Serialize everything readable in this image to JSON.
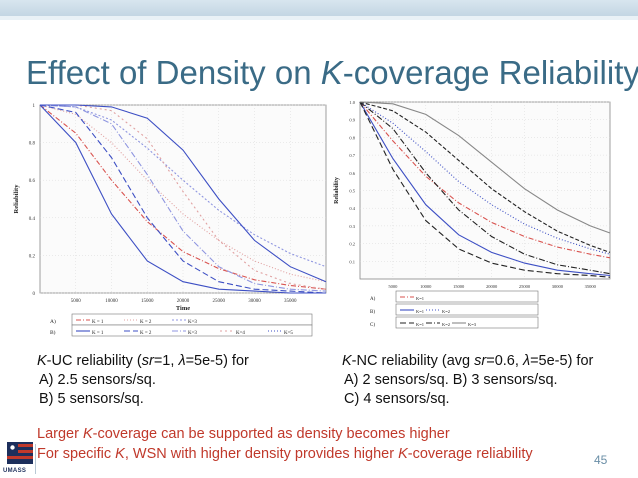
{
  "slide": {
    "title_pre": "Effect of Density on ",
    "title_em": "K",
    "title_post": "-coverage Reliability",
    "page_number": "45",
    "logo_text": "UMASS"
  },
  "left_caption": {
    "line1_em": "K",
    "line1_a": "-UC reliability (",
    "line1_sr": "sr",
    "line1_b": "=1, ",
    "line1_lambda": "λ",
    "line1_c": "=5e-5) for",
    "line2": "A) 2.5 sensors/sq.",
    "line3": "B) 5 sensors/sq."
  },
  "right_caption": {
    "line1_em": "K",
    "line1_a": "-NC reliability (avg ",
    "line1_sr": "sr",
    "line1_b": "=0.6, ",
    "line1_lambda": "λ",
    "line1_c": "=5e-5)  for",
    "line2": "A) 2 sensors/sq.   B) 3 sensors/sq.",
    "line3": "C) 4 sensors/sq."
  },
  "notes": {
    "line1_a": "Larger ",
    "line1_em": "K",
    "line1_b": "-coverage can be supported as density becomes higher",
    "line2_a": "For specific ",
    "line2_em": "K",
    "line2_b": ", WSN with higher density provides higher ",
    "line2_em2": "K",
    "line2_c": "-coverage reliability"
  },
  "colors": {
    "title": "#3a6b86",
    "note": "#c0392b",
    "series_red": "#d9534f",
    "series_pink": "#e0a0a0",
    "series_blue": "#3d4fc4",
    "series_lightblue": "#8f96e0",
    "series_black": "#222222",
    "series_gray": "#888888"
  },
  "chart_data": [
    {
      "type": "line",
      "xlabel": "Time",
      "ylabel": "Reliability",
      "xlim": [
        0,
        40000
      ],
      "ylim": [
        0,
        1
      ],
      "xticks": [
        "5000",
        "10000",
        "15000",
        "20000",
        "25000",
        "30000",
        "35000"
      ],
      "yticks": [
        "0",
        "0.2",
        "0.4",
        "0.6",
        "0.8",
        "1"
      ],
      "grid": true,
      "legend_placement": "bottom",
      "legend": [
        {
          "group": "A)",
          "entries": [
            "K = 1",
            "K = 2",
            "K=3"
          ]
        },
        {
          "group": "B)",
          "entries": [
            "K = 1",
            "K = 2",
            "K=3",
            "K=4",
            "K=5"
          ]
        }
      ],
      "series": [
        {
          "x": [
            0,
            5000,
            10000,
            15000,
            20000,
            25000,
            30000,
            35000,
            40000
          ],
          "values": [
            1.0,
            0.85,
            0.6,
            0.38,
            0.22,
            0.13,
            0.07,
            0.04,
            0.02
          ]
        },
        {
          "x": [
            0,
            5000,
            10000,
            15000,
            20000,
            25000,
            30000,
            35000,
            40000
          ],
          "values": [
            1.0,
            0.95,
            0.8,
            0.6,
            0.42,
            0.28,
            0.17,
            0.1,
            0.06
          ]
        },
        {
          "x": [
            0,
            5000,
            10000,
            15000,
            20000,
            25000,
            30000,
            35000,
            40000
          ],
          "values": [
            1.0,
            0.99,
            0.92,
            0.77,
            0.6,
            0.44,
            0.31,
            0.21,
            0.14
          ]
        },
        {
          "x": [
            0,
            5000,
            10000,
            15000,
            20000,
            25000,
            30000,
            35000,
            40000
          ],
          "values": [
            1.0,
            0.8,
            0.42,
            0.17,
            0.06,
            0.02,
            0.01,
            0.0,
            0.0
          ]
        },
        {
          "x": [
            0,
            5000,
            10000,
            15000,
            20000,
            25000,
            30000,
            35000,
            40000
          ],
          "values": [
            1.0,
            0.96,
            0.72,
            0.4,
            0.17,
            0.06,
            0.02,
            0.01,
            0.0
          ]
        },
        {
          "x": [
            0,
            5000,
            10000,
            15000,
            20000,
            25000,
            30000,
            35000,
            40000
          ],
          "values": [
            1.0,
            0.99,
            0.9,
            0.63,
            0.33,
            0.14,
            0.05,
            0.02,
            0.01
          ]
        },
        {
          "x": [
            0,
            5000,
            10000,
            15000,
            20000,
            25000,
            30000,
            35000,
            40000
          ],
          "values": [
            1.0,
            1.0,
            0.97,
            0.82,
            0.54,
            0.28,
            0.12,
            0.05,
            0.02
          ]
        },
        {
          "x": [
            0,
            5000,
            10000,
            15000,
            20000,
            25000,
            30000,
            35000,
            40000
          ],
          "values": [
            1.0,
            1.0,
            0.99,
            0.93,
            0.76,
            0.5,
            0.28,
            0.14,
            0.06
          ]
        }
      ]
    },
    {
      "type": "line",
      "xlabel": "Time",
      "ylabel": "Reliability",
      "xlim": [
        0,
        38000
      ],
      "ylim": [
        0,
        1
      ],
      "xticks": [
        "5000",
        "10000",
        "15000",
        "20000",
        "25000",
        "30000",
        "35000"
      ],
      "yticks": [
        "0.1",
        "0.2",
        "0.3",
        "0.4",
        "0.5",
        "0.6",
        "0.7",
        "0.8",
        "0.9",
        "1.0"
      ],
      "grid": true,
      "legend_placement": "bottom",
      "legend": [
        {
          "group": "A)",
          "entries": [
            "K=1"
          ]
        },
        {
          "group": "B)",
          "entries": [
            "K=1",
            "K=2"
          ]
        },
        {
          "group": "C)",
          "entries": [
            "K=1",
            "K=2",
            "K=3"
          ]
        }
      ],
      "series": [
        {
          "x": [
            0,
            5000,
            10000,
            15000,
            20000,
            25000,
            30000,
            35000,
            38000
          ],
          "values": [
            1.0,
            0.78,
            0.58,
            0.43,
            0.32,
            0.24,
            0.18,
            0.14,
            0.12
          ]
        },
        {
          "x": [
            0,
            5000,
            10000,
            15000,
            20000,
            25000,
            30000,
            35000,
            38000
          ],
          "values": [
            1.0,
            0.68,
            0.42,
            0.25,
            0.15,
            0.09,
            0.05,
            0.03,
            0.02
          ]
        },
        {
          "x": [
            0,
            5000,
            10000,
            15000,
            20000,
            25000,
            30000,
            35000,
            38000
          ],
          "values": [
            1.0,
            0.88,
            0.72,
            0.55,
            0.42,
            0.31,
            0.23,
            0.17,
            0.14
          ]
        },
        {
          "x": [
            0,
            5000,
            10000,
            15000,
            20000,
            25000,
            30000,
            35000,
            38000
          ],
          "values": [
            1.0,
            0.62,
            0.33,
            0.17,
            0.09,
            0.05,
            0.03,
            0.02,
            0.01
          ]
        },
        {
          "x": [
            0,
            5000,
            10000,
            15000,
            20000,
            25000,
            30000,
            35000,
            38000
          ],
          "values": [
            1.0,
            0.85,
            0.6,
            0.39,
            0.24,
            0.14,
            0.08,
            0.05,
            0.03
          ]
        },
        {
          "x": [
            0,
            5000,
            10000,
            15000,
            20000,
            25000,
            30000,
            35000,
            38000
          ],
          "values": [
            1.0,
            0.95,
            0.83,
            0.67,
            0.51,
            0.38,
            0.27,
            0.19,
            0.15
          ]
        },
        {
          "x": [
            0,
            5000,
            10000,
            15000,
            20000,
            25000,
            30000,
            35000,
            38000
          ],
          "values": [
            1.0,
            0.99,
            0.93,
            0.81,
            0.66,
            0.51,
            0.39,
            0.3,
            0.26
          ]
        }
      ]
    }
  ]
}
